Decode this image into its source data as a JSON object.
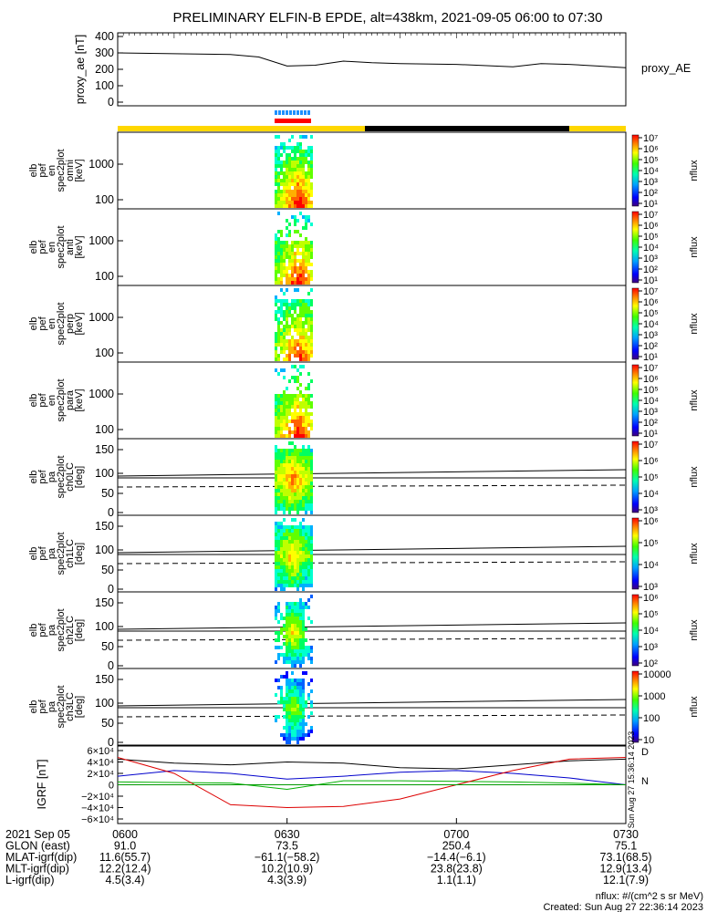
{
  "title": "PRELIMINARY ELFIN-B EPDE, alt=438km, 2021-09-05 06:00 to 07:30",
  "colors": {
    "ae_line": "#000000",
    "sci_zone": "#1e90ff",
    "sci_burst": "#ff0000",
    "bar_sun": "#ffd700",
    "bar_shadow": "#000000",
    "bfield_x": "#000000",
    "bfield_y": "#0000cc",
    "bfield_z": "#00b000",
    "bfield_red": "#dd0000",
    "bfield_green2": "#009900"
  },
  "chart_data": [
    {
      "type": "line",
      "id": "proxy_ae",
      "ylabel": "proxy_ae [nT]",
      "ylim": [
        0,
        400
      ],
      "yticks": [
        "400",
        "300",
        "200",
        "100",
        "0"
      ],
      "legend": "proxy_AE",
      "x_minutes": [
        0,
        10,
        20,
        25,
        30,
        35,
        40,
        45,
        50,
        60,
        70,
        75,
        80,
        85,
        90
      ],
      "y": [
        300,
        295,
        290,
        275,
        220,
        225,
        250,
        240,
        235,
        230,
        215,
        235,
        230,
        220,
        210
      ]
    },
    {
      "type": "heatmap",
      "id": "en_omni",
      "ylabel_lines": [
        "elb",
        "pef",
        "en",
        "spec2plot",
        "omni",
        "[keV]"
      ],
      "yticks": [
        "1000",
        "100"
      ],
      "cbar_ticks": [
        "10⁷",
        "10⁶",
        "10⁵",
        "10⁴",
        "10³",
        "10²",
        "10¹"
      ],
      "cbar_label": "nflux"
    },
    {
      "type": "heatmap",
      "id": "en_anti",
      "ylabel_lines": [
        "elb",
        "pef",
        "en",
        "spec2plot",
        "anti",
        "[keV]"
      ],
      "yticks": [
        "1000",
        "100"
      ],
      "cbar_ticks": [
        "10⁷",
        "10⁶",
        "10⁵",
        "10⁴",
        "10³",
        "10²",
        "10¹"
      ],
      "cbar_label": "nflux"
    },
    {
      "type": "heatmap",
      "id": "en_perp",
      "ylabel_lines": [
        "elb",
        "pef",
        "en",
        "spec2plot",
        "perp",
        "[keV]"
      ],
      "yticks": [
        "1000",
        "100"
      ],
      "cbar_ticks": [
        "10⁷",
        "10⁶",
        "10⁵",
        "10⁴",
        "10³",
        "10²",
        "10¹"
      ],
      "cbar_label": "nflux"
    },
    {
      "type": "heatmap",
      "id": "en_para",
      "ylabel_lines": [
        "elb",
        "pef",
        "en",
        "spec2plot",
        "para",
        "[keV]"
      ],
      "yticks": [
        "1000",
        "100"
      ],
      "cbar_ticks": [
        "10⁷",
        "10⁶",
        "10⁵",
        "10⁴",
        "10³",
        "10²",
        "10¹"
      ],
      "cbar_label": "nflux"
    },
    {
      "type": "heatmap",
      "id": "pa_ch0",
      "ylabel_lines": [
        "elb",
        "pef",
        "pa",
        "spec2plot",
        "ch0LC",
        "[deg]"
      ],
      "yticks": [
        "150",
        "100",
        "50",
        "0"
      ],
      "cbar_ticks": [
        "10⁷",
        "10⁶",
        "10⁵",
        "10⁴",
        "10³"
      ],
      "cbar_label": "nflux"
    },
    {
      "type": "heatmap",
      "id": "pa_ch1",
      "ylabel_lines": [
        "elb",
        "pef",
        "pa",
        "spec2plot",
        "ch1LC",
        "[deg]"
      ],
      "yticks": [
        "150",
        "100",
        "50",
        "0"
      ],
      "cbar_ticks": [
        "10⁶",
        "10⁵",
        "10⁴",
        "10³"
      ],
      "cbar_label": "nflux"
    },
    {
      "type": "heatmap",
      "id": "pa_ch2",
      "ylabel_lines": [
        "elb",
        "pef",
        "pa",
        "spec2plot",
        "ch2LC",
        "[deg]"
      ],
      "yticks": [
        "150",
        "100",
        "50",
        "0"
      ],
      "cbar_ticks": [
        "10⁶",
        "10⁵",
        "10⁴",
        "10³",
        "10²"
      ],
      "cbar_label": "nflux"
    },
    {
      "type": "heatmap",
      "id": "pa_ch3",
      "ylabel_lines": [
        "elb",
        "pef",
        "pa",
        "spec2plot",
        "ch3LC",
        "[deg]"
      ],
      "yticks": [
        "150",
        "100",
        "50",
        "0"
      ],
      "cbar_ticks": [
        "10000",
        "1000",
        "100",
        "10"
      ],
      "cbar_label": "nflux"
    },
    {
      "type": "line",
      "id": "igrf",
      "ylabel": "IGRF [nT]",
      "ylim": [
        -60000,
        60000
      ],
      "yticks": [
        "6×10⁴",
        "4×10⁴",
        "2×10⁴",
        "0",
        "−2×10⁴",
        "−4×10⁴",
        "−6×10⁴"
      ],
      "series": [
        {
          "name": "x",
          "x_minutes": [
            0,
            10,
            20,
            30,
            40,
            50,
            60,
            70,
            80,
            90
          ],
          "y": [
            45000,
            38000,
            35000,
            40000,
            38000,
            30000,
            28000,
            35000,
            42000,
            45000
          ]
        },
        {
          "name": "y",
          "x_minutes": [
            0,
            10,
            20,
            30,
            40,
            50,
            60,
            70,
            80,
            90
          ],
          "y": [
            15000,
            25000,
            20000,
            10000,
            15000,
            22000,
            25000,
            20000,
            12000,
            0
          ]
        },
        {
          "name": "z",
          "x_minutes": [
            0,
            10,
            20,
            30,
            40,
            50,
            60,
            70,
            80,
            90
          ],
          "y": [
            5000,
            4000,
            3000,
            -8000,
            7000,
            7000,
            6000,
            5000,
            3000,
            0
          ]
        },
        {
          "name": "r",
          "x_minutes": [
            0,
            10,
            20,
            30,
            40,
            50,
            60,
            70,
            80,
            90
          ],
          "y": [
            48000,
            20000,
            -35000,
            -40000,
            -38000,
            -25000,
            0,
            25000,
            45000,
            48000
          ]
        }
      ],
      "side_text": [
        "D",
        "N"
      ]
    }
  ],
  "xaxis": {
    "tick_labels": [
      "0600",
      "0630",
      "0700",
      "0730"
    ],
    "rows": [
      {
        "label": "2021 Sep 05",
        "values": [
          "0600",
          "0630",
          "0700",
          "0730"
        ]
      },
      {
        "label": "GLON (east)",
        "values": [
          "91.0",
          "73.5",
          "250.4",
          "75.1"
        ]
      },
      {
        "label": "MLAT-igrf(dip)",
        "values": [
          "11.6(55.7)",
          "−61.1(−58.2)",
          "−14.4(−6.1)",
          "73.1(68.5)"
        ]
      },
      {
        "label": "MLT-igrf(dip)",
        "values": [
          "12.2(12.4)",
          "10.2(10.9)",
          "23.8(23.8)",
          "12.9(13.4)"
        ]
      },
      {
        "label": "L-igrf(dip)",
        "values": [
          "4.5(3.4)",
          "4.3(3.9)",
          "1.1(1.1)",
          "12.1(7.9)"
        ]
      }
    ]
  },
  "footer": {
    "units": "nflux: #/(cm^2 s sr MeV)",
    "created": "Created: Sun Aug 27 22:36:14 2023",
    "side_stamp": "Sun Aug 27 15:36:14 2023"
  }
}
